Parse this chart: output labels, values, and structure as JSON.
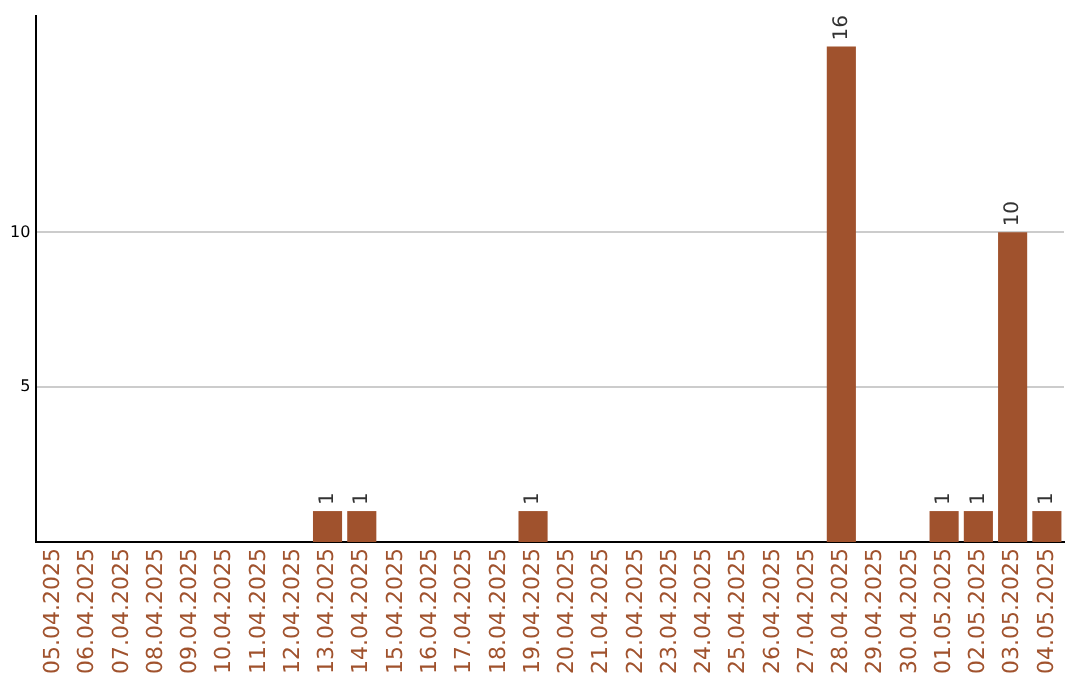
{
  "chart_data": {
    "type": "bar",
    "categories": [
      "05.04.2025",
      "06.04.2025",
      "07.04.2025",
      "08.04.2025",
      "09.04.2025",
      "10.04.2025",
      "11.04.2025",
      "12.04.2025",
      "13.04.2025",
      "14.04.2025",
      "15.04.2025",
      "16.04.2025",
      "17.04.2025",
      "18.04.2025",
      "19.04.2025",
      "20.04.2025",
      "21.04.2025",
      "22.04.2025",
      "23.04.2025",
      "24.04.2025",
      "25.04.2025",
      "26.04.2025",
      "27.04.2025",
      "28.04.2025",
      "29.04.2025",
      "30.04.2025",
      "01.05.2025",
      "02.05.2025",
      "03.05.2025",
      "04.05.2025"
    ],
    "values": [
      null,
      null,
      null,
      null,
      null,
      null,
      null,
      null,
      1,
      1,
      null,
      null,
      null,
      null,
      1,
      null,
      null,
      null,
      null,
      null,
      null,
      null,
      null,
      16,
      null,
      null,
      1,
      1,
      10,
      1
    ],
    "color": "#a0522d",
    "ylim": [
      0,
      17
    ],
    "yticks": [
      5,
      10
    ],
    "grid": "y",
    "legend": false,
    "data_labels": true
  }
}
